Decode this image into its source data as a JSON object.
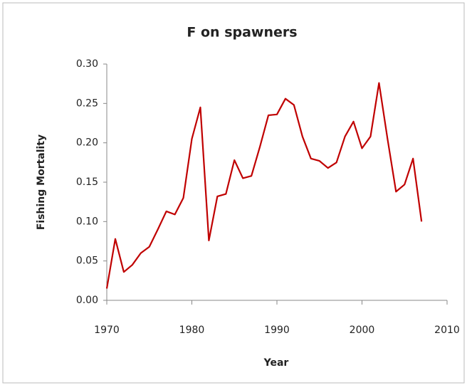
{
  "chart_data": {
    "type": "line",
    "title": "F on spawners",
    "x_label": "Year",
    "y_label": "Fishing Mortality",
    "x": [
      1970,
      1971,
      1972,
      1973,
      1974,
      1975,
      1976,
      1977,
      1978,
      1979,
      1980,
      1981,
      1982,
      1983,
      1984,
      1985,
      1986,
      1987,
      1988,
      1989,
      1990,
      1991,
      1992,
      1993,
      1994,
      1995,
      1996,
      1997,
      1998,
      1999,
      2000,
      2001,
      2002,
      2003,
      2004,
      2005,
      2006,
      2007
    ],
    "series": [
      {
        "name": "F on spawners",
        "color": "#c00000",
        "values": [
          0.015,
          0.078,
          0.036,
          0.045,
          0.06,
          0.068,
          0.09,
          0.113,
          0.109,
          0.13,
          0.205,
          0.245,
          0.076,
          0.132,
          0.135,
          0.178,
          0.155,
          0.158,
          0.195,
          0.235,
          0.236,
          0.256,
          0.248,
          0.208,
          0.18,
          0.177,
          0.168,
          0.175,
          0.208,
          0.227,
          0.193,
          0.208,
          0.276,
          0.205,
          0.138,
          0.147,
          0.18,
          0.1
        ]
      }
    ],
    "xlim": [
      1970,
      2010
    ],
    "xticks": [
      1970,
      1980,
      1990,
      2000,
      2010
    ],
    "ylim": [
      0,
      0.3
    ],
    "yticks": [
      {
        "value": 0,
        "label": "0.00"
      },
      0.05,
      {
        "value": 0.1,
        "label": "0.10"
      },
      0.15,
      {
        "value": 0.2,
        "label": "0.20"
      },
      0.25,
      {
        "value": 0.3,
        "label": "0.30"
      }
    ],
    "grid": false
  }
}
